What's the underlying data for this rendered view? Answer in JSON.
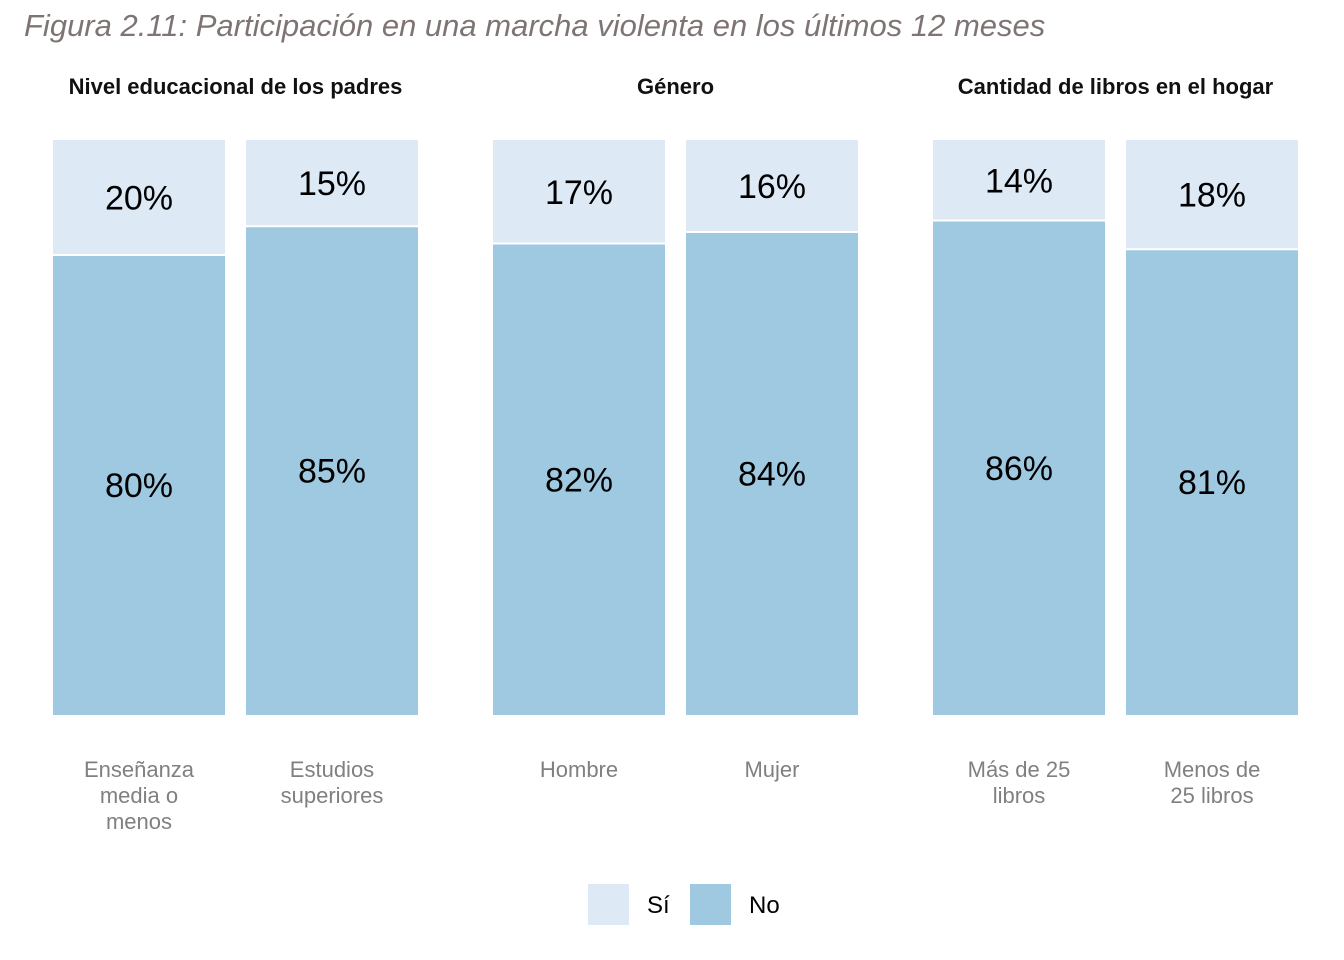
{
  "figure_title": "Figura 2.11: Participación en una marcha violenta en los últimos 12 meses",
  "chart_data": {
    "type": "bar",
    "stacked": true,
    "normalized": true,
    "ylim": [
      0,
      100
    ],
    "unit": "%",
    "grid": false,
    "legend_position": "bottom",
    "series": [
      {
        "name": "Sí",
        "color": "#dde9f5"
      },
      {
        "name": "No",
        "color": "#9fc9e0"
      }
    ],
    "panels": [
      {
        "title": "Nivel educacional de los padres",
        "categories": [
          {
            "label": "Enseñanza media o menos",
            "lines": [
              "Enseñanza",
              "media o",
              "menos"
            ],
            "si": 20,
            "no": 80,
            "si_label": "20%",
            "no_label": "80%"
          },
          {
            "label": "Estudios superiores",
            "lines": [
              "Estudios",
              "superiores"
            ],
            "si": 15,
            "no": 85,
            "si_label": "15%",
            "no_label": "85%"
          }
        ]
      },
      {
        "title": "Género",
        "categories": [
          {
            "label": "Hombre",
            "lines": [
              "Hombre"
            ],
            "si": 17,
            "no": 82,
            "si_label": "17%",
            "no_label": "82%"
          },
          {
            "label": "Mujer",
            "lines": [
              "Mujer"
            ],
            "si": 16,
            "no": 84,
            "si_label": "16%",
            "no_label": "84%"
          }
        ]
      },
      {
        "title": "Cantidad de libros en el hogar",
        "categories": [
          {
            "label": "Más de 25 libros",
            "lines": [
              "Más de 25",
              "libros"
            ],
            "si": 14,
            "no": 86,
            "si_label": "14%",
            "no_label": "86%"
          },
          {
            "label": "Menos de 25 libros",
            "lines": [
              "Menos de",
              "25 libros"
            ],
            "si": 18,
            "no": 81,
            "si_label": "18%",
            "no_label": "81%"
          }
        ]
      }
    ]
  }
}
